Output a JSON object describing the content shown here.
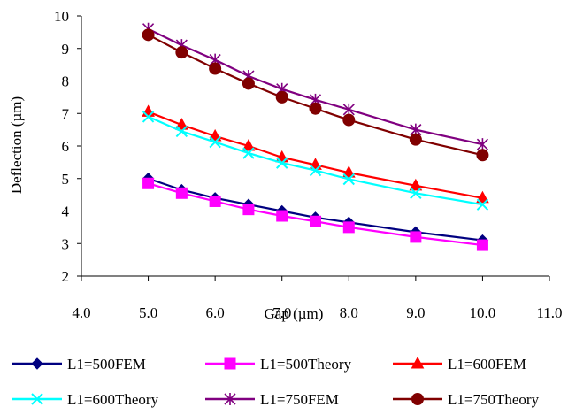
{
  "chart_data": {
    "type": "line",
    "xlabel": "Gap (µm)",
    "ylabel": "Deflection (µm)",
    "xlim": [
      4.0,
      11.0
    ],
    "ylim": [
      2,
      10
    ],
    "x_ticks": [
      "4.0",
      "5.0",
      "6.0",
      "7.0",
      "8.0",
      "9.0",
      "10.0",
      "11.0"
    ],
    "y_ticks": [
      "2",
      "3",
      "4",
      "5",
      "6",
      "7",
      "8",
      "9",
      "10"
    ],
    "grid": false,
    "legend_position": "bottom",
    "x": [
      5.0,
      5.5,
      6.0,
      6.5,
      7.0,
      7.5,
      8.0,
      9.0,
      10.0
    ],
    "series": [
      {
        "name": "L1=500FEM",
        "color": "#000080",
        "marker": "diamond",
        "values": [
          5.0,
          4.65,
          4.4,
          4.2,
          4.0,
          3.8,
          3.65,
          3.35,
          3.1
        ]
      },
      {
        "name": "L1=500Theory",
        "color": "#ff00ff",
        "marker": "square",
        "values": [
          4.85,
          4.55,
          4.3,
          4.05,
          3.85,
          3.68,
          3.5,
          3.2,
          2.95
        ]
      },
      {
        "name": "L1=600FEM",
        "color": "#ff0000",
        "marker": "triangle",
        "values": [
          7.05,
          6.65,
          6.3,
          6.0,
          5.65,
          5.42,
          5.18,
          4.78,
          4.4
        ]
      },
      {
        "name": "L1=600Theory",
        "color": "#00ffff",
        "marker": "x",
        "values": [
          6.9,
          6.45,
          6.12,
          5.78,
          5.48,
          5.25,
          4.98,
          4.55,
          4.2
        ]
      },
      {
        "name": "L1=750FEM",
        "color": "#800080",
        "marker": "star",
        "values": [
          9.6,
          9.1,
          8.65,
          8.15,
          7.75,
          7.42,
          7.12,
          6.5,
          6.05
        ]
      },
      {
        "name": "L1=750Theory",
        "color": "#800000",
        "marker": "circle",
        "values": [
          9.42,
          8.88,
          8.38,
          7.92,
          7.5,
          7.15,
          6.8,
          6.2,
          5.72
        ]
      }
    ]
  }
}
